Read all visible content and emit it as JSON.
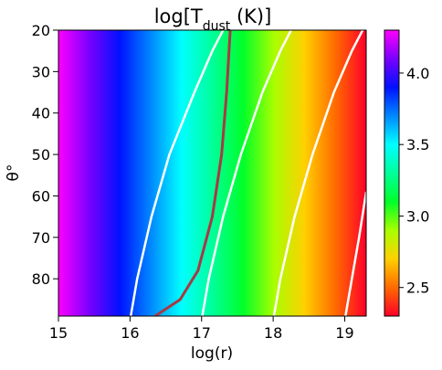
{
  "chart_data": {
    "type": "heatmap",
    "title": {
      "main": "log[T",
      "sub": "dust",
      "rest": " (K)]"
    },
    "xlabel": "log(r)",
    "ylabel": "θ°",
    "xlim": [
      15,
      19.3
    ],
    "ylim": [
      89,
      20
    ],
    "x_ticks": [
      15,
      16,
      17,
      18,
      19
    ],
    "x_tick_labels": [
      "15",
      "16",
      "17",
      "18",
      "19"
    ],
    "y_ticks": [
      20,
      30,
      40,
      50,
      60,
      70,
      80
    ],
    "y_tick_labels": [
      "20",
      "30",
      "40",
      "50",
      "60",
      "70",
      "80"
    ],
    "colorbar": {
      "colormap": "gist_rainbow",
      "range": [
        2.3,
        4.3
      ],
      "ticks": [
        2.5,
        3.0,
        3.5,
        4.0
      ],
      "tick_labels": [
        "2.5",
        "3.0",
        "3.5",
        "4.0"
      ]
    },
    "contours": [
      {
        "level": 3.5,
        "points": [
          [
            16.01,
            89
          ],
          [
            16.1,
            80
          ],
          [
            16.3,
            65
          ],
          [
            16.55,
            50
          ],
          [
            16.9,
            35
          ],
          [
            17.15,
            25
          ],
          [
            17.3,
            20
          ]
        ]
      },
      {
        "level": 3.0,
        "points": [
          [
            17.01,
            89
          ],
          [
            17.1,
            80
          ],
          [
            17.3,
            65
          ],
          [
            17.55,
            50
          ],
          [
            17.85,
            35
          ],
          [
            18.1,
            25
          ],
          [
            18.25,
            20
          ]
        ]
      },
      {
        "level": 2.5,
        "points": [
          [
            18.01,
            89
          ],
          [
            18.1,
            80
          ],
          [
            18.3,
            65
          ],
          [
            18.55,
            50
          ],
          [
            18.85,
            35
          ],
          [
            19.1,
            25
          ],
          [
            19.25,
            20
          ]
        ]
      },
      {
        "level": 2.3,
        "points": [
          [
            19.01,
            89
          ],
          [
            19.1,
            80
          ],
          [
            19.2,
            70
          ],
          [
            19.3,
            59
          ]
        ]
      }
    ],
    "boundary_line": {
      "color": "#a63a44",
      "points": [
        [
          16.35,
          89
        ],
        [
          16.7,
          85
        ],
        [
          16.95,
          78
        ],
        [
          17.15,
          65
        ],
        [
          17.28,
          50
        ],
        [
          17.35,
          35
        ],
        [
          17.4,
          20
        ]
      ]
    }
  }
}
